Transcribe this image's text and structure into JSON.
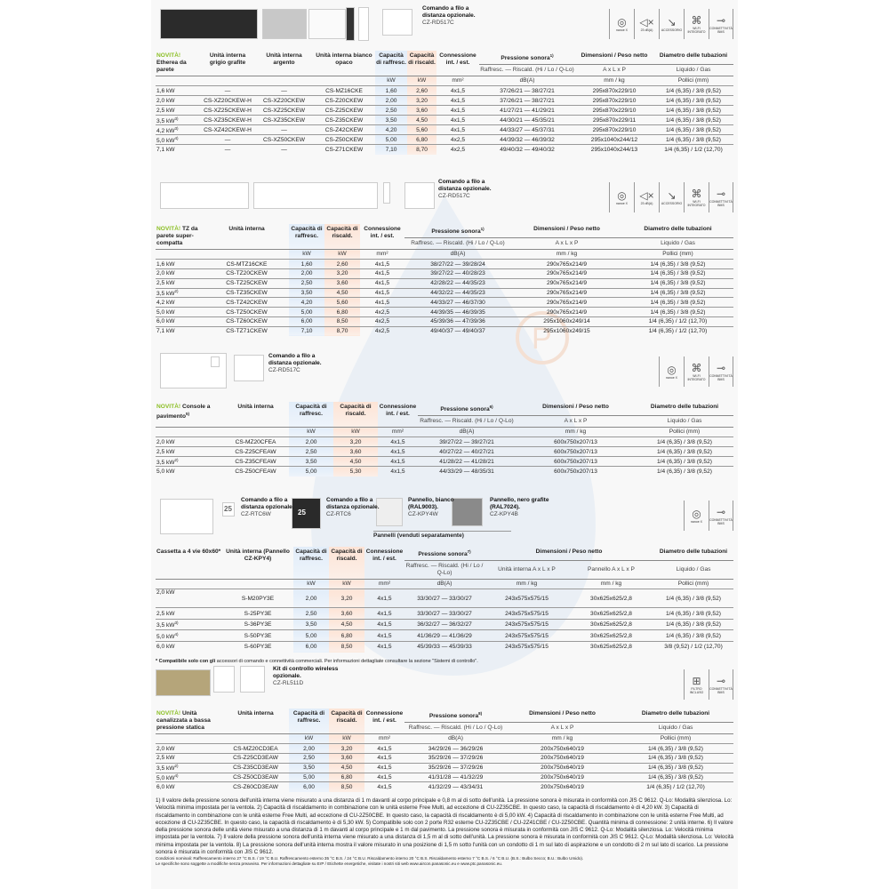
{
  "icon_labels": {
    "nanoe": "nanoe X",
    "db": "23 dB(A)",
    "acc": "ACCESSORIO",
    "wifi": "WI-FI INTEGRATO",
    "bms": "CONNETTIVITÀ BMS",
    "filter": "FILTRO INCLUSO"
  },
  "sections": [
    {
      "captions": [
        {
          "title": "Comando a filo a distanza opzionale.",
          "model": "CZ-RD517C"
        }
      ],
      "icons": [
        "nanoe",
        "db",
        "acc",
        "wifi",
        "bms"
      ],
      "table": {
        "prefix": "NOVITÀ!",
        "label": "Etherea da parete",
        "columns": [
          {
            "h": "Unità interna grigio grafite"
          },
          {
            "h": "Unità interna argento"
          },
          {
            "h": "Unità interna bianco opaco"
          },
          {
            "h": "Capacità di raffresc.",
            "u": "kW",
            "c": "cool"
          },
          {
            "h": "Capacità di riscald.",
            "u": "kW",
            "c": "heat"
          },
          {
            "h": "Connessione int. / est.",
            "u": "mm²"
          },
          {
            "h": "Pressione sonora",
            "sup": "1)",
            "s": "Raffresc. — Riscald. (Hi / Lo / Q-Lo)",
            "u": "dB(A)"
          },
          {
            "h": "Dimensioni / Peso netto",
            "s": "A x L x P",
            "u": "mm / kg"
          },
          {
            "h": "Diametro delle tubazioni",
            "s": "Liquido / Gas",
            "u": "Pollici (mm)"
          }
        ],
        "sups": [
          "",
          "",
          "",
          "3)",
          "3)",
          "4)",
          ""
        ],
        "rows": [
          [
            "1,6 kW",
            "—",
            "—",
            "CS-MZ16CKE",
            "1,60",
            "2,60",
            "4x1,5",
            "37/26/21 — 38/27/21",
            "295x870x229/10",
            "1/4 (6,35) / 3/8 (9,52)"
          ],
          [
            "2,0 kW",
            "CS-XZ20CKEW-H",
            "CS-XZ20CKEW",
            "CS-Z20CKEW",
            "2,00",
            "3,20",
            "4x1,5",
            "37/26/21 — 38/27/21",
            "295x870x229/10",
            "1/4 (6,35) / 3/8 (9,52)"
          ],
          [
            "2,5 kW",
            "CS-XZ25CKEW-H",
            "CS-XZ25CKEW",
            "CS-Z25CKEW",
            "2,50",
            "3,60",
            "4x1,5",
            "41/27/21 — 41/29/21",
            "295x870x229/10",
            "1/4 (6,35) / 3/8 (9,52)"
          ],
          [
            "3,5 kW",
            "CS-XZ35CKEW-H",
            "CS-XZ35CKEW",
            "CS-Z35CKEW",
            "3,50",
            "4,50",
            "4x1,5",
            "44/30/21 — 45/35/21",
            "295x870x229/11",
            "1/4 (6,35) / 3/8 (9,52)"
          ],
          [
            "4,2 kW",
            "CS-XZ42CKEW-H",
            "—",
            "CS-Z42CKEW",
            "4,20",
            "5,60",
            "4x1,5",
            "44/33/27 — 45/37/31",
            "295x870x229/10",
            "1/4 (6,35) / 3/8 (9,52)"
          ],
          [
            "5,0 kW",
            "—",
            "CS-XZ50CKEW",
            "CS-Z50CKEW",
            "5,00",
            "6,80",
            "4x2,5",
            "44/39/32 — 46/39/32",
            "295x1040x244/12",
            "1/4 (6,35) / 3/8 (9,52)"
          ],
          [
            "7,1 kW",
            "—",
            "—",
            "CS-Z71CKEW",
            "7,10",
            "8,70",
            "4x2,5",
            "49/40/32 — 49/40/32",
            "295x1040x244/13",
            "1/4 (6,35) / 1/2 (12,70)"
          ]
        ]
      }
    },
    {
      "captions": [
        {
          "title": "Comando a filo a distanza opzionale.",
          "model": "CZ-RD517C"
        }
      ],
      "icons": [
        "nanoe",
        "db",
        "acc",
        "wifi",
        "bms"
      ],
      "table": {
        "prefix": "NOVITÀ!",
        "label": "TZ da parete super-compatta",
        "columns": [
          {
            "h": "Unità interna"
          },
          {
            "h": "Capacità di raffresc.",
            "u": "kW",
            "c": "cool"
          },
          {
            "h": "Capacità di riscald.",
            "u": "kW",
            "c": "heat"
          },
          {
            "h": "Connessione int. / est.",
            "u": "mm²"
          },
          {
            "h": "Pressione sonora",
            "sup": "1)",
            "s": "Raffresc. — Riscald. (Hi / Lo / Q-Lo)",
            "u": "dB(A)"
          },
          {
            "h": "Dimensioni / Peso netto",
            "s": "A x L x P",
            "u": "mm / kg"
          },
          {
            "h": "Diametro delle tubazioni",
            "s": "Liquido / Gas",
            "u": "Pollici (mm)"
          }
        ],
        "sups": [
          "",
          "",
          "",
          "2)",
          "",
          "",
          "",
          ""
        ],
        "rows": [
          [
            "1,6 kW",
            "CS-MTZ16CKE",
            "1,60",
            "2,60",
            "4x1,5",
            "38/27/22 — 39/28/24",
            "290x765x214/9",
            "1/4 (6,35) / 3/8 (9,52)"
          ],
          [
            "2,0 kW",
            "CS-TZ20CKEW",
            "2,00",
            "3,20",
            "4x1,5",
            "39/27/22 — 40/28/23",
            "290x765x214/9",
            "1/4 (6,35) / 3/8 (9,52)"
          ],
          [
            "2,5 kW",
            "CS-TZ25CKEW",
            "2,50",
            "3,60",
            "4x1,5",
            "42/28/22 — 44/35/23",
            "290x765x214/9",
            "1/4 (6,35) / 3/8 (9,52)"
          ],
          [
            "3,5 kW",
            "CS-TZ35CKEW",
            "3,50",
            "4,50",
            "4x1,5",
            "44/32/22 — 44/35/23",
            "290x765x214/9",
            "1/4 (6,35) / 3/8 (9,52)"
          ],
          [
            "4,2 kW",
            "CS-TZ42CKEW",
            "4,20",
            "5,60",
            "4x1,5",
            "44/33/27 — 46/37/30",
            "290x765x214/9",
            "1/4 (6,35) / 3/8 (9,52)"
          ],
          [
            "5,0 kW",
            "CS-TZ50CKEW",
            "5,00",
            "6,80",
            "4x2,5",
            "44/39/35 — 46/39/35",
            "290x765x214/9",
            "1/4 (6,35) / 3/8 (9,52)"
          ],
          [
            "6,0 kW",
            "CS-TZ60CKEW",
            "6,00",
            "8,50",
            "4x2,5",
            "45/39/36 — 47/39/36",
            "295x1060x249/14",
            "1/4 (6,35) / 1/2 (12,70)"
          ],
          [
            "7,1 kW",
            "CS-TZ71CKEW",
            "7,10",
            "8,70",
            "4x2,5",
            "49/40/37 — 49/40/37",
            "295x1060x249/15",
            "1/4 (6,35) / 1/2 (12,70)"
          ]
        ]
      }
    },
    {
      "captions": [
        {
          "title": "Comando a filo a distanza opzionale.",
          "model": "CZ-RD517C"
        }
      ],
      "icons": [
        "nanoe",
        "wifi",
        "bms"
      ],
      "table": {
        "prefix": "NOVITÀ!",
        "label": "Console a pavimento",
        "label_sup": "5)",
        "columns": [
          {
            "h": "Unità interna"
          },
          {
            "h": "Capacità di raffresc.",
            "u": "kW",
            "c": "cool"
          },
          {
            "h": "Capacità di riscald.",
            "u": "kW",
            "c": "heat"
          },
          {
            "h": "Connessione int. / est.",
            "u": "mm²"
          },
          {
            "h": "Pressione sonora",
            "sup": "6)",
            "s": "Raffresc. — Riscald. (Hi / Lo / Q-Lo)",
            "u": "dB(A)"
          },
          {
            "h": "Dimensioni / Peso netto",
            "s": "A x L x P",
            "u": "mm / kg"
          },
          {
            "h": "Diametro delle tubazioni",
            "s": "Liquido / Gas",
            "u": "Pollici (mm)"
          }
        ],
        "sups": [
          "",
          "",
          "2)",
          ""
        ],
        "rows": [
          [
            "2,0 kW",
            "CS-MZ20CFEA",
            "2,00",
            "3,20",
            "4x1,5",
            "39/27/22 — 39/27/21",
            "600x750x207/13",
            "1/4 (6,35) / 3/8 (9,52)"
          ],
          [
            "2,5 kW",
            "CS-Z25CFEAW",
            "2,50",
            "3,60",
            "4x1,5",
            "40/27/22 — 40/27/21",
            "600x750x207/13",
            "1/4 (6,35) / 3/8 (9,52)"
          ],
          [
            "3,5 kW",
            "CS-Z35CFEAW",
            "3,50",
            "4,50",
            "4x1,5",
            "41/28/22 — 41/28/21",
            "600x750x207/13",
            "1/4 (6,35) / 3/8 (9,52)"
          ],
          [
            "5,0 kW",
            "CS-Z50CFEAW",
            "5,00",
            "5,30",
            "4x1,5",
            "44/33/29 — 48/35/31",
            "600x750x207/13",
            "1/4 (6,35) / 3/8 (9,52)"
          ]
        ]
      }
    },
    {
      "captions": [
        {
          "title": "Comando a filo a distanza opzionale.",
          "model": "CZ-RTC6W"
        },
        {
          "title": "Comando a filo a distanza opzionale.",
          "model": "CZ-RTC6"
        },
        {
          "title": "Pannello, bianco (RAL9003).",
          "model": "CZ-KPY4W"
        },
        {
          "title": "Pannello, nero grafite (RAL7024).",
          "model": "CZ-KPY4B"
        }
      ],
      "panels_note": "Pannelli (venduti separatamente)",
      "display_temp": "25",
      "icons": [
        "nanoe",
        "bms"
      ],
      "table": {
        "prefix": "",
        "label": "Cassetta a 4 vie 60x60*",
        "columns": [
          {
            "h": "Unità interna (Pannello CZ-KPY4)"
          },
          {
            "h": "Capacità di raffresc.",
            "u": "kW",
            "c": "cool"
          },
          {
            "h": "Capacità di riscald.",
            "u": "kW",
            "c": "heat"
          },
          {
            "h": "Connessione int. / est.",
            "u": "mm²"
          },
          {
            "h": "Pressione sonora",
            "sup": "7)",
            "s": "Raffresc. — Riscald. (Hi / Lo / Q-Lo)",
            "u": "dB(A)"
          },
          {
            "h": "Dimensioni / Peso netto",
            "g": 1,
            "s": "Unità interna A x L x P",
            "u": "mm / kg"
          },
          {
            "h": "Dimensioni / Peso netto",
            "g": 1,
            "s": "Pannello A x L x P",
            "u": "mm / kg"
          },
          {
            "h": "Diametro delle tubazioni",
            "s": "Liquido / Gas",
            "u": "Pollici (mm)"
          }
        ],
        "sups": [
          "",
          "",
          "3)",
          "4)",
          ""
        ],
        "rows": [
          [
            "2,0 kW",
            "S-M20PY3E",
            "2,00",
            "3,20",
            "4x1,5",
            "33/30/27 — 33/30/27",
            "243x575x575/15",
            "30x625x625/2,8",
            "1/4 (6,35) / 3/8 (9,52)"
          ],
          [
            "2,5 kW",
            "S-25PY3E",
            "2,50",
            "3,60",
            "4x1,5",
            "33/30/27 — 33/30/27",
            "243x575x575/15",
            "30x625x625/2,8",
            "1/4 (6,35) / 3/8 (9,52)"
          ],
          [
            "3,5 kW",
            "S-36PY3E",
            "3,50",
            "4,50",
            "4x1,5",
            "36/32/27 — 36/32/27",
            "243x575x575/15",
            "30x625x625/2,8",
            "1/4 (6,35) / 3/8 (9,52)"
          ],
          [
            "5,0 kW",
            "S-50PY3E",
            "5,00",
            "6,80",
            "4x1,5",
            "41/36/29 — 41/36/29",
            "243x575x575/15",
            "30x625x625/2,8",
            "1/4 (6,35) / 3/8 (9,52)"
          ],
          [
            "6,0 kW",
            "S-60PY3E",
            "6,00",
            "8,50",
            "4x1,5",
            "45/39/33 — 45/39/33",
            "243x575x575/15",
            "30x625x625/2,8",
            "3/8 (9,52) / 1/2 (12,70)"
          ]
        ],
        "note_bold": "* Compatibile solo con gli",
        "note": " accessori di comando e connettività commerciali. Per informazioni dettagliate consultare la sezione \"Sistemi di controllo\"."
      }
    },
    {
      "captions": [
        {
          "title": "Kit di controllo wireless opzionale.",
          "model": "CZ-RL511D"
        }
      ],
      "icons": [
        "filter",
        "bms"
      ],
      "table": {
        "prefix": "NOVITÀ!",
        "label": "Unità canalizzata a bassa pressione statica",
        "columns": [
          {
            "h": "Unità interna"
          },
          {
            "h": "Capacità di raffresc.",
            "u": "kW",
            "c": "cool"
          },
          {
            "h": "Capacità di riscald.",
            "u": "kW",
            "c": "heat"
          },
          {
            "h": "Connessione int. / est.",
            "u": "mm²"
          },
          {
            "h": "Pressione sonora",
            "sup": "8)",
            "s": "Raffresc. — Riscald. (Hi / Lo / Q-Lo)",
            "u": "dB(A)"
          },
          {
            "h": "Dimensioni / Peso netto",
            "s": "A x L x P",
            "u": "mm / kg"
          },
          {
            "h": "Diametro delle tubazioni",
            "s": "Liquido / Gas",
            "u": "Pollici (mm)"
          }
        ],
        "sups": [
          "",
          "",
          "2)",
          "4)",
          ""
        ],
        "rows": [
          [
            "2,0 kW",
            "CS-MZ20CD3EA",
            "2,00",
            "3,20",
            "4x1,5",
            "34/29/26 — 36/29/26",
            "200x750x640/19",
            "1/4 (6,35) / 3/8 (9,52)"
          ],
          [
            "2,5 kW",
            "CS-Z25CD3EAW",
            "2,50",
            "3,60",
            "4x1,5",
            "35/29/26 — 37/29/26",
            "200x750x640/19",
            "1/4 (6,35) / 3/8 (9,52)"
          ],
          [
            "3,5 kW",
            "CS-Z35CD3EAW",
            "3,50",
            "4,50",
            "4x1,5",
            "35/29/26 — 37/29/26",
            "200x750x640/19",
            "1/4 (6,35) / 3/8 (9,52)"
          ],
          [
            "5,0 kW",
            "CS-Z50CD3EAW",
            "5,00",
            "6,80",
            "4x1,5",
            "41/31/28 — 41/32/29",
            "200x750x640/19",
            "1/4 (6,35) / 3/8 (9,52)"
          ],
          [
            "6,0 kW",
            "CS-Z60CD3EAW",
            "6,00",
            "8,50",
            "4x1,5",
            "41/32/29 — 43/34/31",
            "200x750x640/19",
            "1/4 (6,35) / 1/2 (12,70)"
          ]
        ]
      }
    }
  ],
  "footnotes": {
    "main": "1) Il valore della pressione sonora dell'unità interna viene misurato a una distanza di 1 m davanti al corpo principale e 0,8 m al di sotto dell'unità. La pressione sonora è misurata in conformità con JIS C 9612. Q-Lo: Modalità silenziosa. Lo: Velocità minima impostata per la ventola. 2) Capacità di riscaldamento in combinazione con le unità esterne Free Multi, ad eccezione di CU-2Z35CBE. In questo caso, la capacità di riscaldamento è di 4,20 kW. 3) Capacità di riscaldamento in combinazione con le unità esterne Free Multi, ad eccezione di CU-2Z50CBE. In questo caso, la capacità di riscaldamento è di 5,00 kW. 4) Capacità di riscaldamento in combinazione con le unità esterne Free Multi, ad eccezione di CU-2Z35CBE. In questo caso, la capacità di riscaldamento è di 5,30 kW. 5) Compatibile solo con 2 porte R32 esterne CU-2Z35CBE / CU-2Z41CBE / CU-2Z50CBE. Quantità minima di connessione: 2 unità interne. 6) Il valore della pressione sonora delle unità viene misurato a una distanza di 1 m davanti al corpo principale e 1 m dal pavimento. La pressione sonora è misurata in conformità con JIS C 9612. Q-Lo: Modalità silenziosa. Lo: Velocità minima impostata per la ventola. 7) Il valore della pressione sonora dell'unità interna viene misurato a una distanza di 1,5 m al di sotto dell'unità. La pressione sonora è misurata in conformità con JIS C 9612. Q-Lo: Modalità silenziosa. Lo: Velocità minima impostata per la ventola. 8) La pressione sonora dell'unità interna mostra il valore misurato in una posizione di 1,5 m sotto l'unità con un condotto di 1 m sul lato di aspirazione e un condotto di 2 m sul lato di scarico. La pressione sonora è misurata in conformità con JIS C 9612.",
    "conditions": "Condizioni nominali: Raffrescamento interno 27 °C B.S. / 19 °C B.U. Raffrescamento esterno 35 °C B.S. / 24 °C B.U. Riscaldamento interno 20 °C B.S. Riscaldamento esterno 7 °C B.S. / 6 °C B.U. (B.S.: Bulbo Secco; B.U.: Bulbo Umido).",
    "disclaimer": "Le specifiche sono soggette a modifiche senza preavviso. Per informazioni dettagliate su ErP / Etichette energetiche, visitate i nostri siti web www.aircon.panasonic.eu e www.ptc.panasonic.eu."
  }
}
